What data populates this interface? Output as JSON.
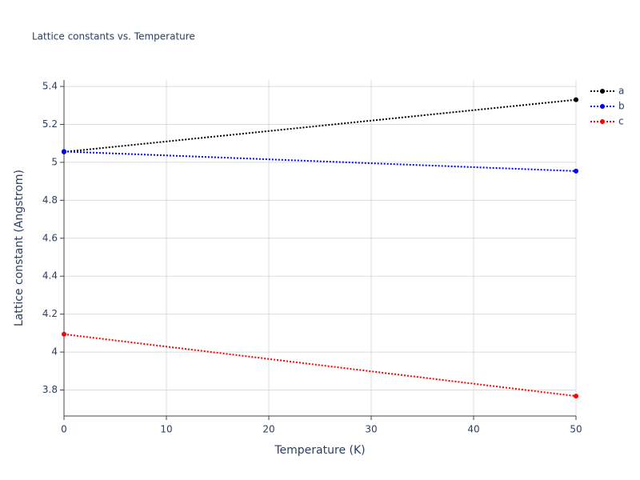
{
  "chart_data": {
    "type": "line",
    "title": "Lattice constants vs. Temperature",
    "x_label": "Temperature (K)",
    "y_label": "Lattice constant (Angstrom)",
    "x": [
      0,
      50
    ],
    "series": [
      {
        "name": "a",
        "color": "#000000",
        "values": [
          5.055,
          5.33
        ]
      },
      {
        "name": "b",
        "color": "#0000ff",
        "values": [
          5.057,
          4.954
        ]
      },
      {
        "name": "c",
        "color": "#ff0000",
        "values": [
          4.094,
          3.768
        ]
      }
    ],
    "xlim": [
      0,
      50
    ],
    "xticks": [
      0,
      10,
      20,
      30,
      40,
      50
    ],
    "ylim": [
      3.663,
      5.434
    ],
    "yticks": [
      3.8,
      4,
      4.2,
      4.4,
      4.6,
      4.8,
      5,
      5.2,
      5.4
    ],
    "grid": true,
    "legend": "top-right"
  }
}
